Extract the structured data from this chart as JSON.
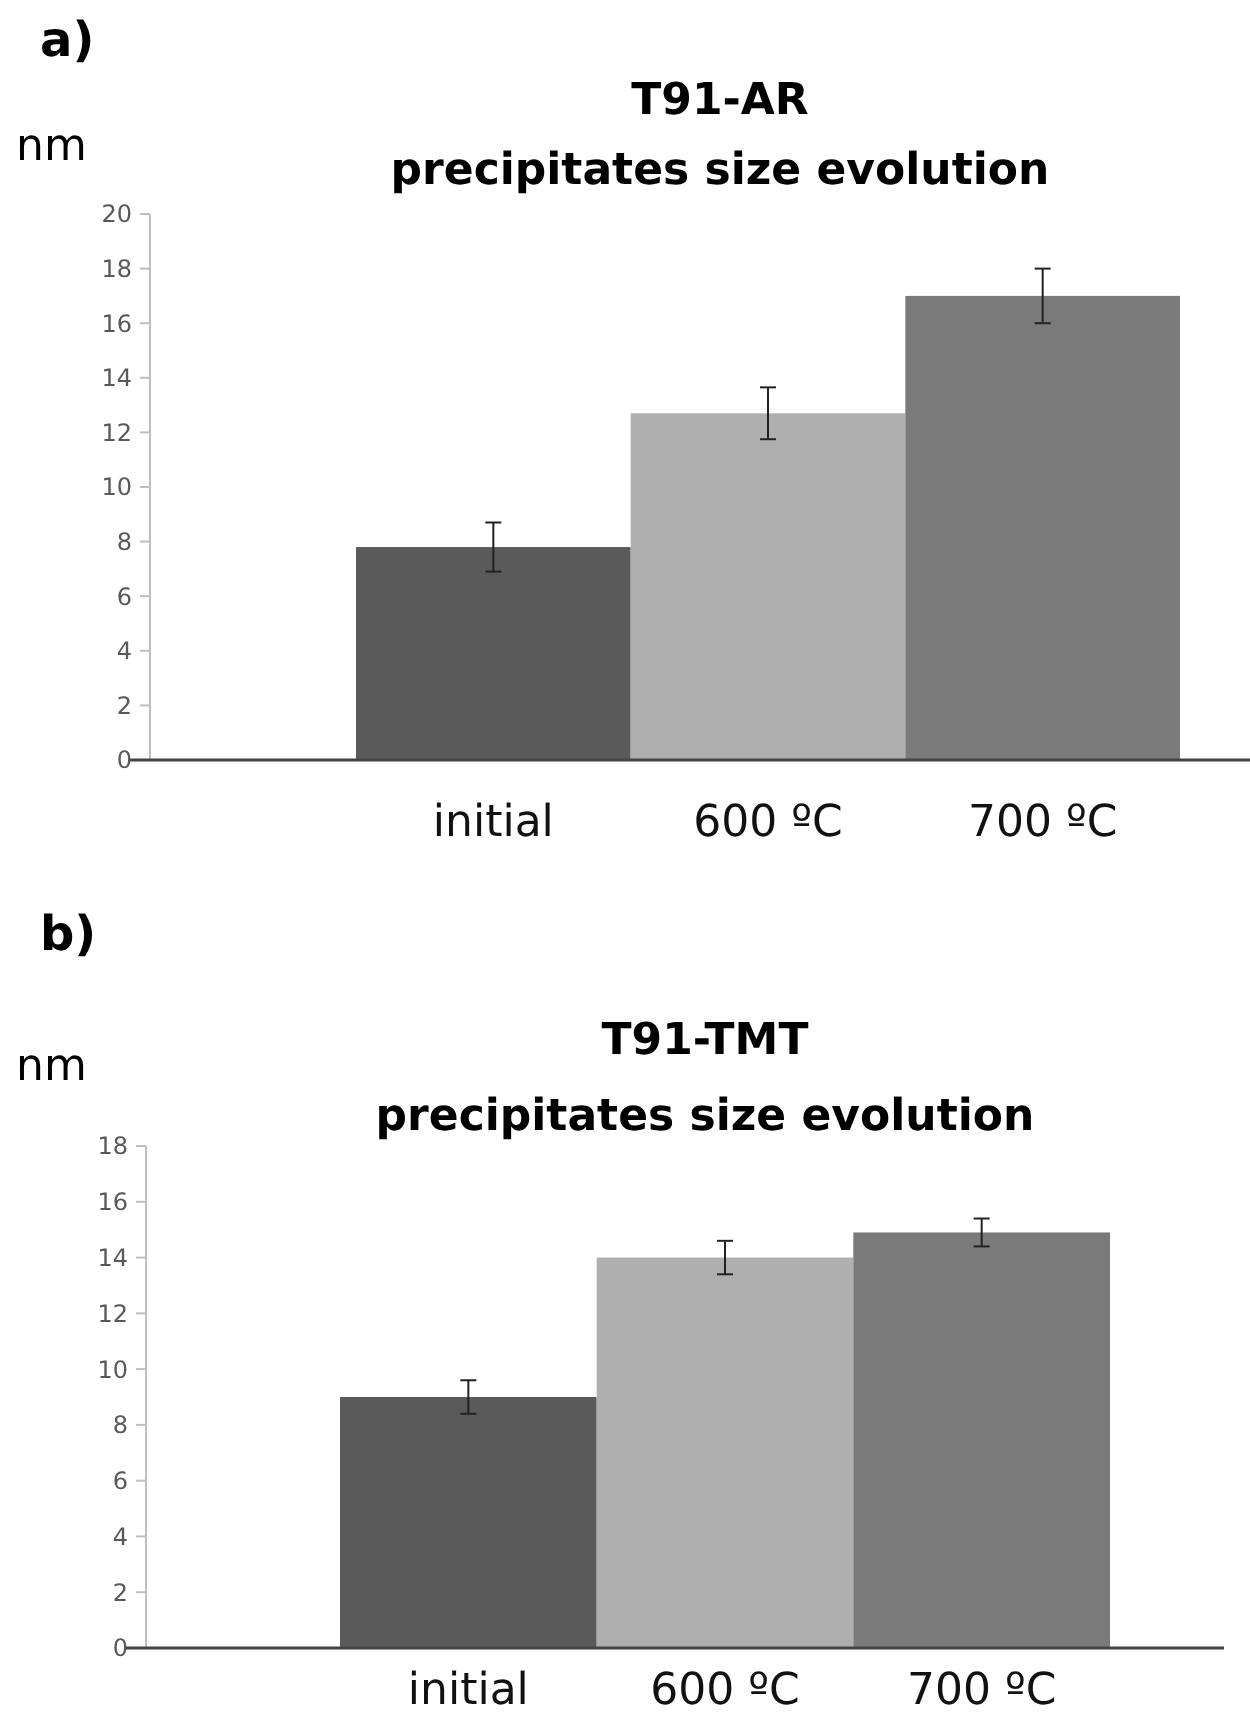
{
  "chart_data": [
    {
      "type": "bar",
      "title": "T91-AR",
      "subtitle": "precipitates size evolution",
      "ylabel": "nm",
      "annotations": [
        "a)"
      ],
      "categories": [
        "initial",
        "600 ºC",
        "700 ºC"
      ],
      "values": [
        7.8,
        12.7,
        17.0
      ],
      "errors": [
        0.9,
        0.95,
        1.0
      ],
      "colors": [
        "#5a5a5a",
        "#afafaf",
        "#7a7a7a"
      ],
      "ylim": [
        0,
        20
      ],
      "yticks": [
        0,
        2,
        4,
        6,
        8,
        10,
        12,
        14,
        16,
        18,
        20
      ],
      "grid": false
    },
    {
      "type": "bar",
      "title": "T91-TMT",
      "subtitle": "precipitates size evolution",
      "ylabel": "nm",
      "annotations": [
        "b)"
      ],
      "categories": [
        "initial",
        "600 ºC",
        "700 ºC"
      ],
      "values": [
        9.0,
        14.0,
        14.9
      ],
      "errors": [
        0.6,
        0.6,
        0.5
      ],
      "colors": [
        "#5a5a5a",
        "#afafaf",
        "#7a7a7a"
      ],
      "ylim": [
        0,
        18
      ],
      "yticks": [
        0,
        2,
        4,
        6,
        8,
        10,
        12,
        14,
        16,
        18
      ],
      "grid": false
    }
  ]
}
